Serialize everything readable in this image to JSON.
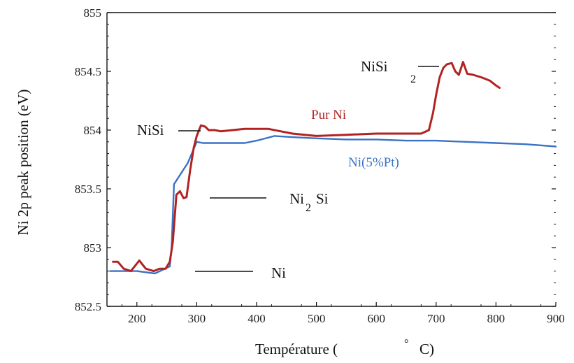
{
  "chart_data": {
    "type": "line",
    "xlabel_main": "Température (",
    "xlabel_degree": "°",
    "xlabel_unit": "C)",
    "ylabel": "Ni 2p peak position (eV)",
    "xlim": [
      150,
      900
    ],
    "ylim": [
      852.5,
      855
    ],
    "x_ticks": [
      "200",
      "300",
      "400",
      "500",
      "600",
      "700",
      "800",
      "900"
    ],
    "y_ticks": [
      "852.5",
      "853",
      "853.5",
      "854",
      "854.5",
      "855"
    ],
    "grid": false,
    "series": [
      {
        "name": "Pur Ni",
        "color": "#b22222",
        "x": [
          160,
          168,
          178,
          190,
          204,
          215,
          228,
          238,
          248,
          255,
          260,
          266,
          272,
          278,
          283,
          289,
          295,
          300,
          307,
          314,
          320,
          330,
          340,
          360,
          380,
          400,
          420,
          440,
          460,
          480,
          500,
          550,
          600,
          650,
          675,
          688,
          695,
          700,
          706,
          712,
          718,
          726,
          732,
          738,
          745,
          752,
          762,
          775,
          790,
          800,
          806
        ],
        "values": [
          852.88,
          852.88,
          852.82,
          852.8,
          852.89,
          852.82,
          852.8,
          852.82,
          852.82,
          852.88,
          853.05,
          853.45,
          853.48,
          853.42,
          853.43,
          853.66,
          853.85,
          853.95,
          854.04,
          854.03,
          854.0,
          854.0,
          853.99,
          854.0,
          854.01,
          854.01,
          854.01,
          853.99,
          853.97,
          853.96,
          853.95,
          853.96,
          853.97,
          853.97,
          853.97,
          854.0,
          854.15,
          854.3,
          854.45,
          854.53,
          854.56,
          854.57,
          854.5,
          854.47,
          854.58,
          854.48,
          854.47,
          854.45,
          854.42,
          854.38,
          854.36
        ]
      },
      {
        "name": "Ni(5%Pt)",
        "color": "#3a72c4",
        "x": [
          155,
          200,
          230,
          255,
          258,
          262,
          285,
          300,
          310,
          340,
          380,
          400,
          430,
          460,
          500,
          550,
          600,
          650,
          700,
          750,
          800,
          850,
          900
        ],
        "values": [
          852.8,
          852.8,
          852.78,
          852.84,
          853.0,
          853.54,
          853.72,
          853.9,
          853.89,
          853.89,
          853.89,
          853.91,
          853.95,
          853.94,
          853.93,
          853.92,
          853.92,
          853.91,
          853.91,
          853.9,
          853.89,
          853.88,
          853.86
        ]
      }
    ],
    "annotations": [
      {
        "id": "ni",
        "text": "Ni",
        "sub": ""
      },
      {
        "id": "ni2si",
        "text": "Ni",
        "sub": "2",
        "text2": "Si"
      },
      {
        "id": "nisi",
        "text": "NiSi",
        "sub": ""
      },
      {
        "id": "nisi2",
        "text": "NiSi",
        "sub": "2"
      }
    ]
  }
}
